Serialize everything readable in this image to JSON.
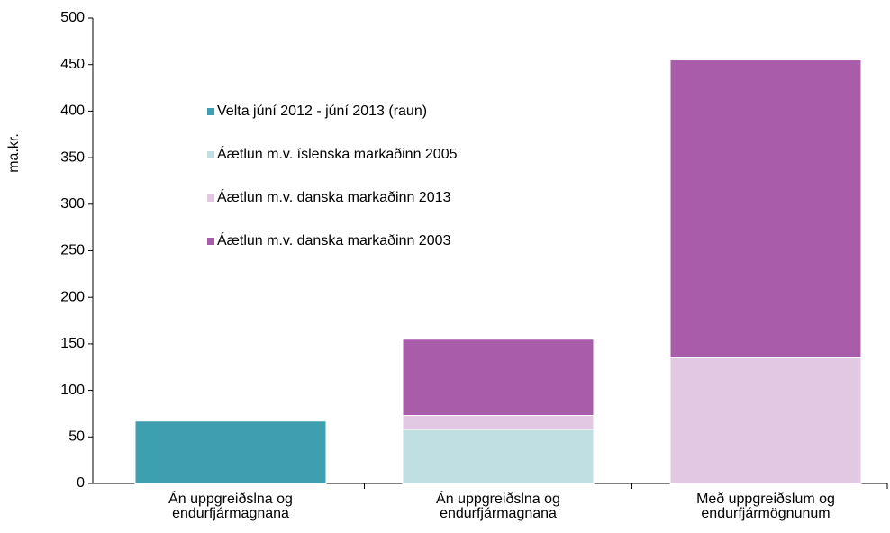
{
  "chart_data": {
    "type": "stacked_bar",
    "y_label": "ma.kr.",
    "categories": [
      "Án uppgreiðslna og endurfjármagnana",
      "Án uppgreiðslna og endurfjármagnana",
      "Með uppgreiðslum og endurfjármögnunum"
    ],
    "series": [
      {
        "name": "Velta júní 2012 - júní 2013 (raun)",
        "color": "#3e9fb0",
        "values": [
          67,
          null,
          null
        ]
      },
      {
        "name": "Áætlun m.v. íslenska markaðinn 2005",
        "color": "#bfdfe3",
        "values": [
          null,
          58,
          null
        ]
      },
      {
        "name": "Áætlun m.v. danska markaðinn 2013",
        "color": "#e3c8e3",
        "values": [
          null,
          15,
          135
        ]
      },
      {
        "name": "Áætlun m.v. danska markaðinn 2003",
        "color": "#a95caa",
        "values": [
          null,
          82,
          320
        ]
      }
    ],
    "ylim": [
      0,
      500
    ],
    "yticks": [
      0,
      50,
      100,
      150,
      200,
      250,
      300,
      350,
      400,
      450,
      500
    ],
    "grid": false,
    "legend": "upper left"
  }
}
